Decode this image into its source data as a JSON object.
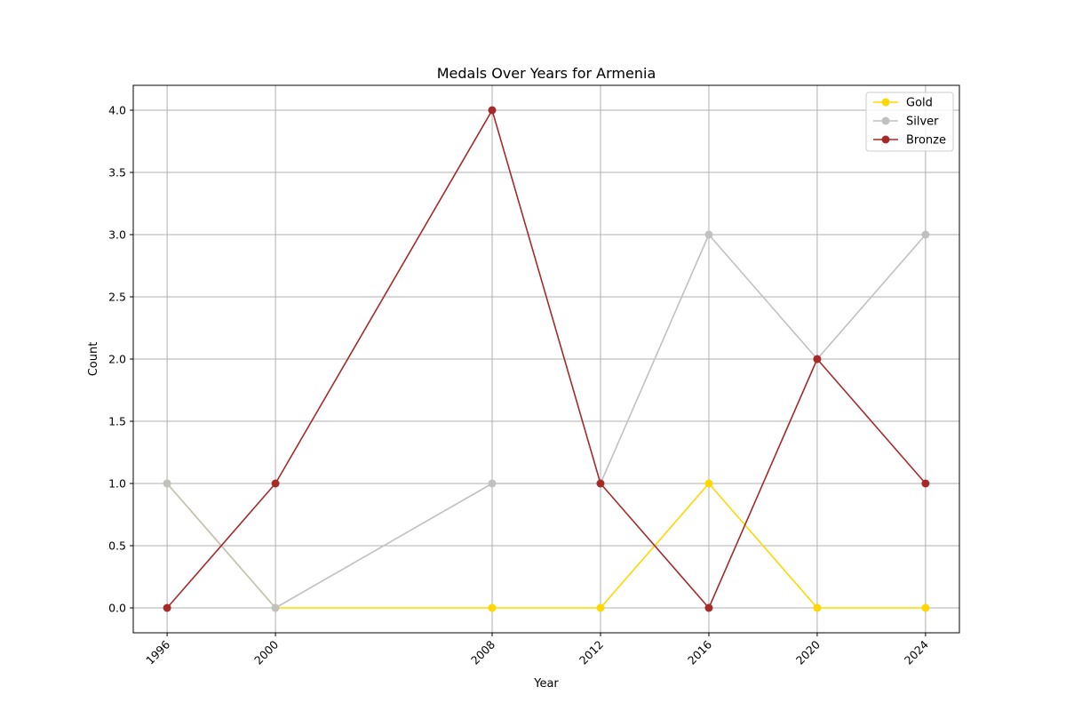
{
  "chart_data": {
    "type": "line",
    "title": "Medals Over Years for Armenia",
    "xlabel": "Year",
    "ylabel": "Count",
    "x": [
      1996,
      2000,
      2008,
      2012,
      2016,
      2020,
      2024
    ],
    "x_tick_labels": [
      "1996",
      "2000",
      "2008",
      "2012",
      "2016",
      "2020",
      "2024"
    ],
    "xlim": [
      1994.75,
      2025.25
    ],
    "ylim": [
      -0.2,
      4.2
    ],
    "y_ticks": [
      0.0,
      0.5,
      1.0,
      1.5,
      2.0,
      2.5,
      3.0,
      3.5,
      4.0
    ],
    "y_tick_labels": [
      "0.0",
      "0.5",
      "1.0",
      "1.5",
      "2.0",
      "2.5",
      "3.0",
      "3.5",
      "4.0"
    ],
    "grid": true,
    "legend_position": "top-right",
    "markers": "circle",
    "series": [
      {
        "name": "Gold",
        "color": "#ffd700",
        "values": [
          1,
          0,
          0,
          0,
          1,
          0,
          0
        ]
      },
      {
        "name": "Silver",
        "color": "#c0c0c0",
        "values": [
          1,
          0,
          1,
          1,
          3,
          2,
          3
        ]
      },
      {
        "name": "Bronze",
        "color": "#a52a2a",
        "values": [
          0,
          1,
          4,
          1,
          0,
          2,
          1
        ]
      }
    ]
  }
}
